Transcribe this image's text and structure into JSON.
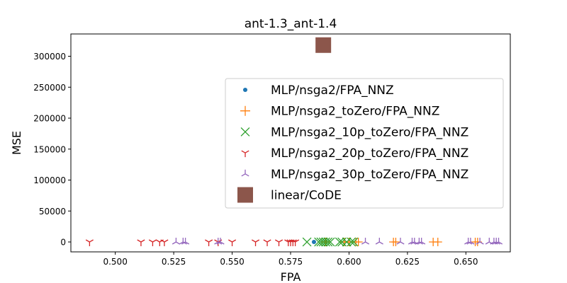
{
  "chart_data": {
    "type": "scatter",
    "title": "ant-1.3_ant-1.4",
    "xlabel": "FPA",
    "ylabel": "MSE",
    "xlim": [
      0.481,
      0.669
    ],
    "ylim": [
      -16000,
      336000
    ],
    "xticks": [
      0.5,
      0.525,
      0.55,
      0.575,
      0.6,
      0.625,
      0.65
    ],
    "xtick_labels": [
      "0.500",
      "0.525",
      "0.550",
      "0.575",
      "0.600",
      "0.625",
      "0.650"
    ],
    "yticks": [
      0,
      50000,
      100000,
      150000,
      200000,
      250000,
      300000
    ],
    "ytick_labels": [
      "0",
      "50000",
      "100000",
      "150000",
      "200000",
      "250000",
      "300000"
    ],
    "grid": false,
    "legend_position": "right",
    "series": [
      {
        "name": "MLP/nsga2/FPA_NNZ",
        "marker": "dot",
        "color": "#1f77b4",
        "points": [
          [
            0.585,
            0
          ]
        ]
      },
      {
        "name": "MLP/nsga2_toZero/FPA_NNZ",
        "marker": "plus",
        "color": "#ff7f0e",
        "points": [
          [
            0.59,
            0
          ],
          [
            0.598,
            0
          ],
          [
            0.6,
            0
          ],
          [
            0.603,
            0
          ],
          [
            0.604,
            0
          ],
          [
            0.619,
            0
          ],
          [
            0.62,
            0
          ],
          [
            0.636,
            0
          ],
          [
            0.638,
            0
          ],
          [
            0.654,
            0
          ],
          [
            0.655,
            0
          ]
        ]
      },
      {
        "name": "MLP/nsga2_10p_toZero/FPA_NNZ",
        "marker": "x",
        "color": "#2ca02c",
        "points": [
          [
            0.582,
            0
          ],
          [
            0.587,
            0
          ],
          [
            0.588,
            0
          ],
          [
            0.589,
            0
          ],
          [
            0.59,
            0
          ],
          [
            0.591,
            0
          ],
          [
            0.592,
            0
          ],
          [
            0.596,
            0
          ],
          [
            0.597,
            0
          ],
          [
            0.599,
            0
          ],
          [
            0.601,
            0
          ],
          [
            0.602,
            0
          ]
        ]
      },
      {
        "name": "MLP/nsga2_20p_toZero/FPA_NNZ",
        "marker": "tri_down",
        "color": "#d62728",
        "points": [
          [
            0.489,
            0
          ],
          [
            0.511,
            0
          ],
          [
            0.516,
            0
          ],
          [
            0.519,
            0
          ],
          [
            0.521,
            0
          ],
          [
            0.54,
            0
          ],
          [
            0.544,
            0
          ],
          [
            0.55,
            0
          ],
          [
            0.56,
            0
          ],
          [
            0.565,
            0
          ],
          [
            0.57,
            0
          ],
          [
            0.574,
            0
          ],
          [
            0.575,
            0
          ],
          [
            0.576,
            0
          ],
          [
            0.577,
            0
          ]
        ]
      },
      {
        "name": "MLP/nsga2_30p_toZero/FPA_NNZ",
        "marker": "tri_up",
        "color": "#9467bd",
        "points": [
          [
            0.526,
            0
          ],
          [
            0.529,
            0
          ],
          [
            0.53,
            0
          ],
          [
            0.544,
            0
          ],
          [
            0.545,
            0
          ],
          [
            0.607,
            0
          ],
          [
            0.613,
            0
          ],
          [
            0.622,
            0
          ],
          [
            0.627,
            0
          ],
          [
            0.628,
            0
          ],
          [
            0.63,
            0
          ],
          [
            0.631,
            0
          ],
          [
            0.651,
            0
          ],
          [
            0.652,
            0
          ],
          [
            0.656,
            0
          ],
          [
            0.66,
            0
          ],
          [
            0.662,
            0
          ],
          [
            0.663,
            0
          ],
          [
            0.664,
            0
          ]
        ]
      },
      {
        "name": "linear/CoDE",
        "marker": "square",
        "color": "#8c564b",
        "points": [
          [
            0.589,
            318000
          ]
        ]
      }
    ]
  }
}
